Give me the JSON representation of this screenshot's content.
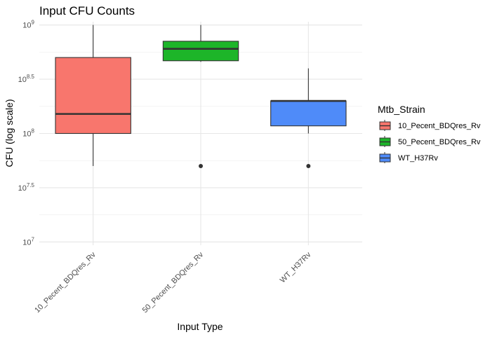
{
  "chart_data": {
    "type": "boxplot",
    "title": "Input CFU Counts",
    "xlabel": "Input Type",
    "ylabel": "CFU (log scale)",
    "y_scale": "log10",
    "ylim_log10": [
      6.97,
      9.03
    ],
    "y_ticks": [
      {
        "exp": 7,
        "label_base": "10",
        "label_exp": "7"
      },
      {
        "exp": 7.5,
        "label_base": "10",
        "label_exp": "7.5"
      },
      {
        "exp": 8,
        "label_base": "10",
        "label_exp": "8"
      },
      {
        "exp": 8.5,
        "label_base": "10",
        "label_exp": "8.5"
      },
      {
        "exp": 9,
        "label_base": "10",
        "label_exp": "9"
      }
    ],
    "categories": [
      "10_Pecent_BDQres_Rv",
      "50_Pecent_BDQres_Rv",
      "WT_H37Rv"
    ],
    "grid": true,
    "legend_position": "right",
    "legend": {
      "title": "Mtb_Strain",
      "entries": [
        "10_Pecent_BDQres_Rv",
        "50_Pecent_BDQres_Rv",
        "WT_H37Rv"
      ]
    },
    "series": [
      {
        "name": "10_Pecent_BDQres_Rv",
        "color": "#F8766D",
        "whisker_low": 7.7,
        "q1": 8.0,
        "median": 8.18,
        "q3": 8.7,
        "whisker_high": 9.0,
        "outliers": []
      },
      {
        "name": "50_Pecent_BDQres_Rv",
        "color": "#1DB529",
        "whisker_low": 8.66,
        "q1": 8.67,
        "median": 8.78,
        "q3": 8.85,
        "whisker_high": 9.0,
        "outliers": [
          7.7
        ]
      },
      {
        "name": "WT_H37Rv",
        "color": "#4F8BF9",
        "whisker_low": 8.0,
        "q1": 8.07,
        "median": 8.3,
        "q3": 8.3,
        "whisker_high": 8.6,
        "outliers": [
          7.7
        ]
      }
    ]
  }
}
